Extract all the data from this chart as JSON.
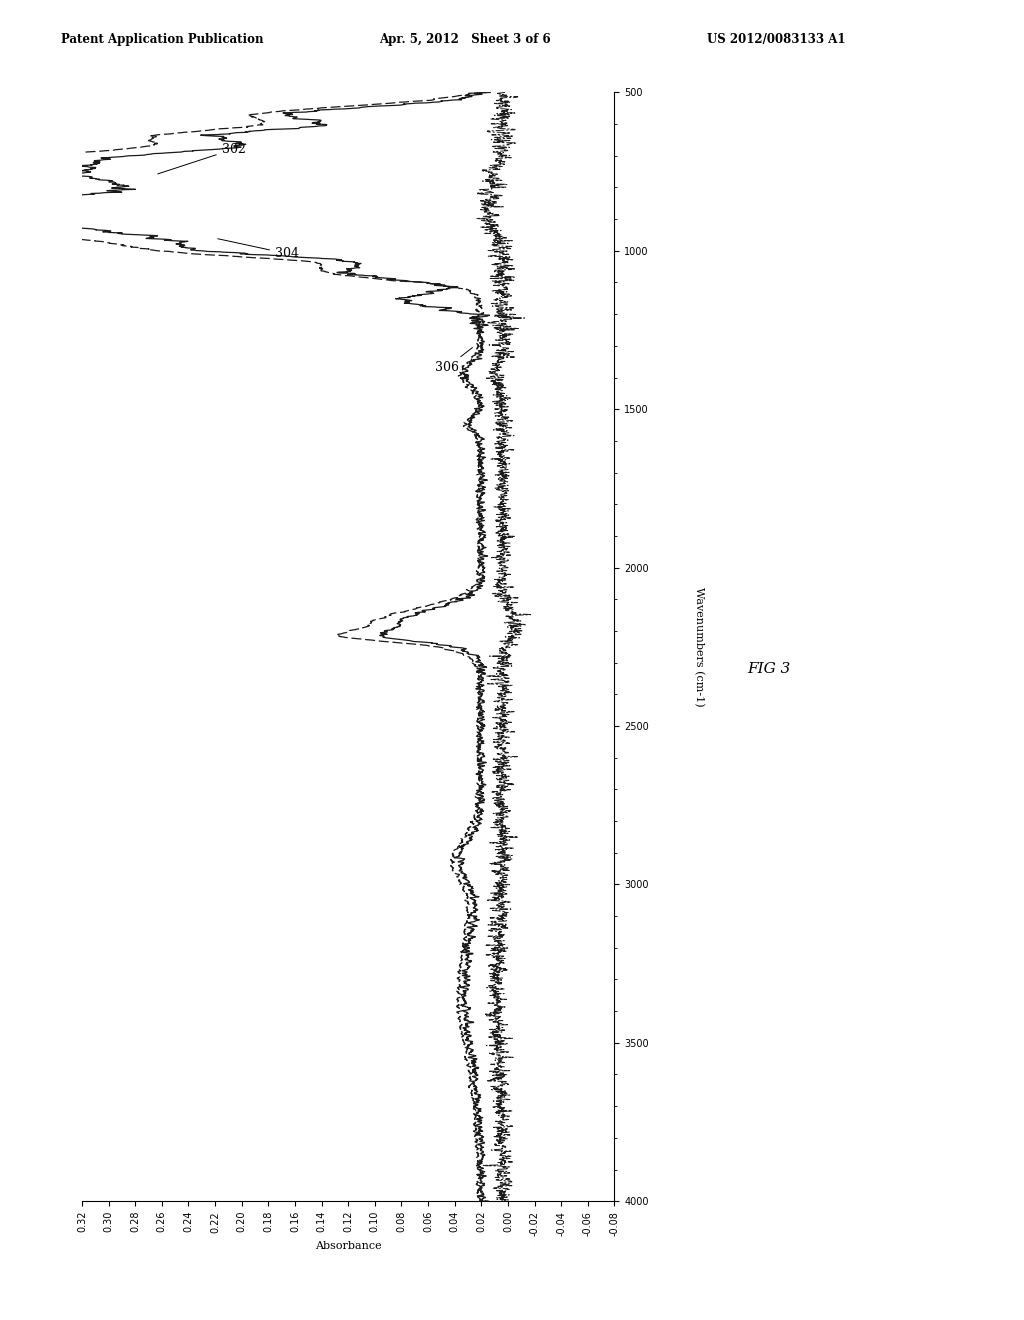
{
  "header_left": "Patent Application Publication",
  "header_mid": "Apr. 5, 2012   Sheet 3 of 6",
  "header_right": "US 2012/0083133 A1",
  "fig_label": "FIG 3",
  "xlabel": "Wavenumbers (cm-1)",
  "ylabel": "Absorbance",
  "wn_min": 500,
  "wn_max": 4000,
  "abs_min": -0.08,
  "abs_max": 0.32,
  "wn_ticks": [
    500,
    1000,
    1500,
    2000,
    2500,
    3000,
    3500,
    4000
  ],
  "abs_ticks": [
    0.32,
    0.3,
    0.28,
    0.26,
    0.24,
    0.22,
    0.2,
    0.18,
    0.16,
    0.14,
    0.12,
    0.1,
    0.08,
    0.06,
    0.04,
    0.02,
    0.0,
    -0.02,
    -0.04,
    -0.06,
    -0.08
  ],
  "label_302": "302",
  "label_304": "304",
  "label_306": "306",
  "background_color": "#ffffff",
  "line_color": "#1a1a1a",
  "header_fontsize": 8.5,
  "tick_fontsize": 7,
  "label_fontsize": 8,
  "annotation_fontsize": 9
}
